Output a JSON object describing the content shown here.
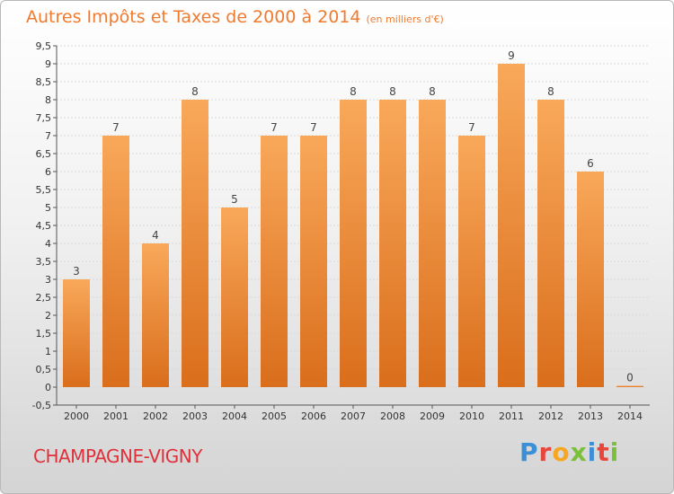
{
  "title": "Autres Impôts et Taxes de 2000 à 2014",
  "subtitle": "(en milliers d'€)",
  "commune": "CHAMPAGNE-VIGNY",
  "logo": {
    "letters": [
      "P",
      "r",
      "o",
      "x",
      "i",
      "t",
      "i"
    ],
    "colors": [
      "#3c8fd6",
      "#e8453c",
      "#f5a623",
      "#7cbf3a",
      "#3c8fd6",
      "#e8453c",
      "#7cbf3a"
    ]
  },
  "colors": {
    "bar_light": "#f9a85a",
    "bar_dark": "#d96e1c",
    "grid": "#d9d9d9",
    "axis": "#555555"
  },
  "chart_data": {
    "type": "bar",
    "categories": [
      "2000",
      "2001",
      "2002",
      "2003",
      "2004",
      "2005",
      "2006",
      "2007",
      "2008",
      "2009",
      "2010",
      "2011",
      "2012",
      "2013",
      "2014"
    ],
    "values": [
      3,
      7,
      4,
      8,
      5,
      7,
      7,
      8,
      8,
      8,
      7,
      9,
      8,
      6,
      0
    ],
    "labels": [
      "3",
      "7",
      "4",
      "8",
      "5",
      "7",
      "7",
      "8",
      "8",
      "8",
      "7",
      "9",
      "8",
      "6",
      "0"
    ],
    "yticks": [
      "-0,5",
      "0",
      "0,5",
      "1",
      "1,5",
      "2",
      "2,5",
      "3",
      "3,5",
      "4",
      "4,5",
      "5",
      "5,5",
      "6",
      "6,5",
      "7",
      "7,5",
      "8",
      "8,5",
      "9",
      "9,5"
    ],
    "ylim": [
      -0.5,
      9.5
    ],
    "grid": true,
    "title": "Autres Impôts et Taxes de 2000 à 2014",
    "xlabel": "",
    "ylabel": ""
  }
}
